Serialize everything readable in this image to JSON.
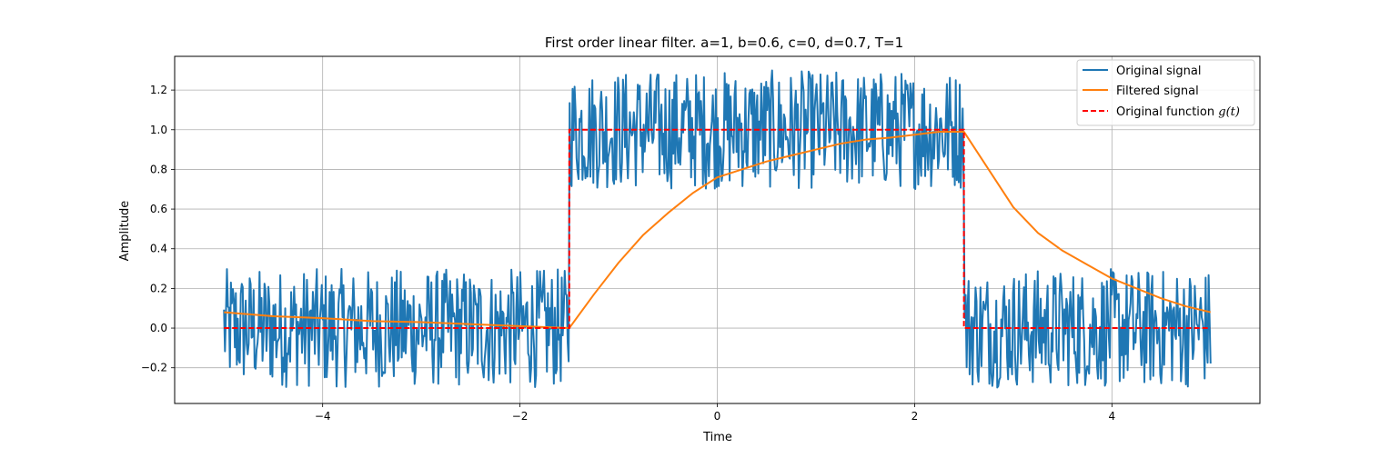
{
  "chart_data": {
    "type": "line",
    "title": "First order linear filter. a=1, b=0.6, c=0, d=0.7, T=1",
    "xlabel": "Time",
    "ylabel": "Amplitude",
    "xlim": [
      -5.5,
      5.5
    ],
    "ylim": [
      -0.38,
      1.37
    ],
    "xticks": [
      -4,
      -2,
      0,
      2,
      4
    ],
    "xtick_labels": [
      "−4",
      "−2",
      "0",
      "2",
      "4"
    ],
    "yticks": [
      -0.2,
      0.0,
      0.2,
      0.4,
      0.6,
      0.8,
      1.0,
      1.2
    ],
    "ytick_labels": [
      "−0.2",
      "0.0",
      "0.2",
      "0.4",
      "0.6",
      "0.8",
      "1.0",
      "1.2"
    ],
    "grid": true,
    "legend_position": "top-right",
    "legend": {
      "original_signal": "Original signal",
      "filtered_signal": "Filtered signal",
      "original_function_prefix": "Original function ",
      "original_function_math": "g(t)"
    },
    "series": [
      {
        "name": "Original signal",
        "color": "#1f77b4",
        "style": "solid",
        "description": "Step function g(t) plus uniform noise in roughly [-0.3, 0.3], sampled densely from -5 to 5",
        "noise_range": [
          -0.3,
          0.3
        ],
        "samples": 1000
      },
      {
        "name": "Filtered signal",
        "color": "#ff7f0e",
        "style": "solid",
        "x": [
          -5.0,
          -4.5,
          -4.0,
          -3.5,
          -3.0,
          -2.5,
          -2.0,
          -1.5,
          -1.25,
          -1.0,
          -0.75,
          -0.5,
          -0.25,
          0.0,
          0.25,
          0.5,
          0.75,
          1.0,
          1.25,
          1.5,
          1.75,
          2.0,
          2.25,
          2.5,
          2.75,
          3.0,
          3.25,
          3.5,
          3.75,
          4.0,
          4.25,
          4.5,
          4.75,
          5.0
        ],
        "y": [
          0.08,
          0.06,
          0.05,
          0.035,
          0.03,
          0.02,
          0.01,
          0.0,
          0.17,
          0.33,
          0.47,
          0.58,
          0.68,
          0.76,
          0.8,
          0.84,
          0.87,
          0.9,
          0.93,
          0.95,
          0.96,
          0.975,
          0.99,
          0.99,
          0.8,
          0.61,
          0.48,
          0.39,
          0.32,
          0.25,
          0.2,
          0.15,
          0.11,
          0.08
        ]
      },
      {
        "name": "Original function g(t)",
        "color": "#ff0000",
        "style": "dashed",
        "x": [
          -5.0,
          -1.5,
          -1.5,
          2.5,
          2.5,
          5.0
        ],
        "y": [
          0.0,
          0.0,
          1.0,
          1.0,
          0.0,
          0.0
        ]
      }
    ]
  }
}
